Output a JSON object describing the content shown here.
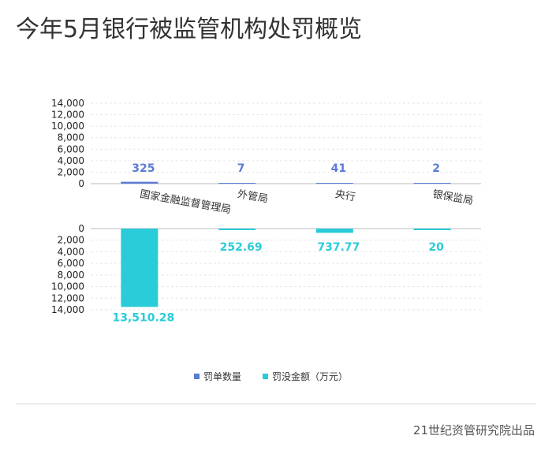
{
  "title": "今年5月银行被监管机构处罚概览",
  "source": "21世纪资管研究院出品",
  "colors": {
    "count": "#5b7bd5",
    "amount": "#29ccd8",
    "axis": "#222222",
    "grid": "#e6e6e6"
  },
  "chart_data": {
    "type": "bar",
    "categories": [
      "国家金融监督管理局",
      "外管局",
      "央行",
      "银保监局"
    ],
    "series": [
      {
        "name": "罚单数量",
        "values": [
          325,
          7,
          41,
          2
        ],
        "labels": [
          "325",
          "7",
          "41",
          "2"
        ]
      },
      {
        "name": "罚没金额（万元）",
        "values": [
          13510.28,
          252.69,
          737.77,
          20
        ],
        "labels": [
          "13,510.28",
          "252.69",
          "737.77",
          "20"
        ]
      }
    ],
    "top_axis": {
      "ylim": [
        0,
        14000
      ],
      "ticks": [
        "0",
        "2,000",
        "4,000",
        "6,000",
        "8,000",
        "10,000",
        "12,000",
        "14,000"
      ]
    },
    "bottom_axis": {
      "ylim": [
        0,
        14000
      ],
      "ticks": [
        "0",
        "2,000",
        "4,000",
        "6,000",
        "8,000",
        "10,000",
        "12,000",
        "14,000"
      ],
      "inverted": true
    },
    "legend": {
      "position": "bottom-center"
    },
    "grid": true
  }
}
